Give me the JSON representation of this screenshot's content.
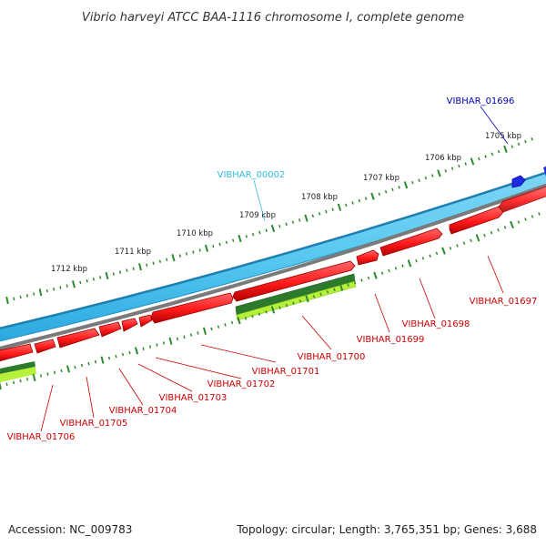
{
  "title": "Vibrio harveyi ATCC BAA-1116 chromosome I, complete genome",
  "accession_text": "Accession: NC_009783",
  "topology_text": "Topology: circular; Length: 3,765,351 bp; Genes: 3,688",
  "scale_labels": [
    "1712 kbp",
    "1711 kbp",
    "1710 kbp",
    "1709 kbp",
    "1708 kbp",
    "1707 kbp",
    "1706 kbp",
    "1705 kbp"
  ],
  "colors": {
    "plus_strand_gene": "#1e2ce0",
    "plus_strand_label": "#0000aa",
    "track_light_blue": "#58c8f0",
    "track_light_blue_label": "#33bbdd",
    "minus_strand_gene": "#ff1a1a",
    "minus_strand_label": "#cc0000",
    "dark_green": "#2d7a2d",
    "yellow_green": "#b6f03a",
    "backbone": "#7a7a7a",
    "tick": "#2d8a2d"
  },
  "labels": {
    "top": [
      "VIBHAR_01696",
      "VIBHAR_00002"
    ],
    "bottom": [
      "VIBHAR_01697",
      "VIBHAR_01698",
      "VIBHAR_01699",
      "VIBHAR_01700",
      "VIBHAR_01701",
      "VIBHAR_01702",
      "VIBHAR_01703",
      "VIBHAR_01704",
      "VIBHAR_01705",
      "VIBHAR_01706"
    ]
  }
}
